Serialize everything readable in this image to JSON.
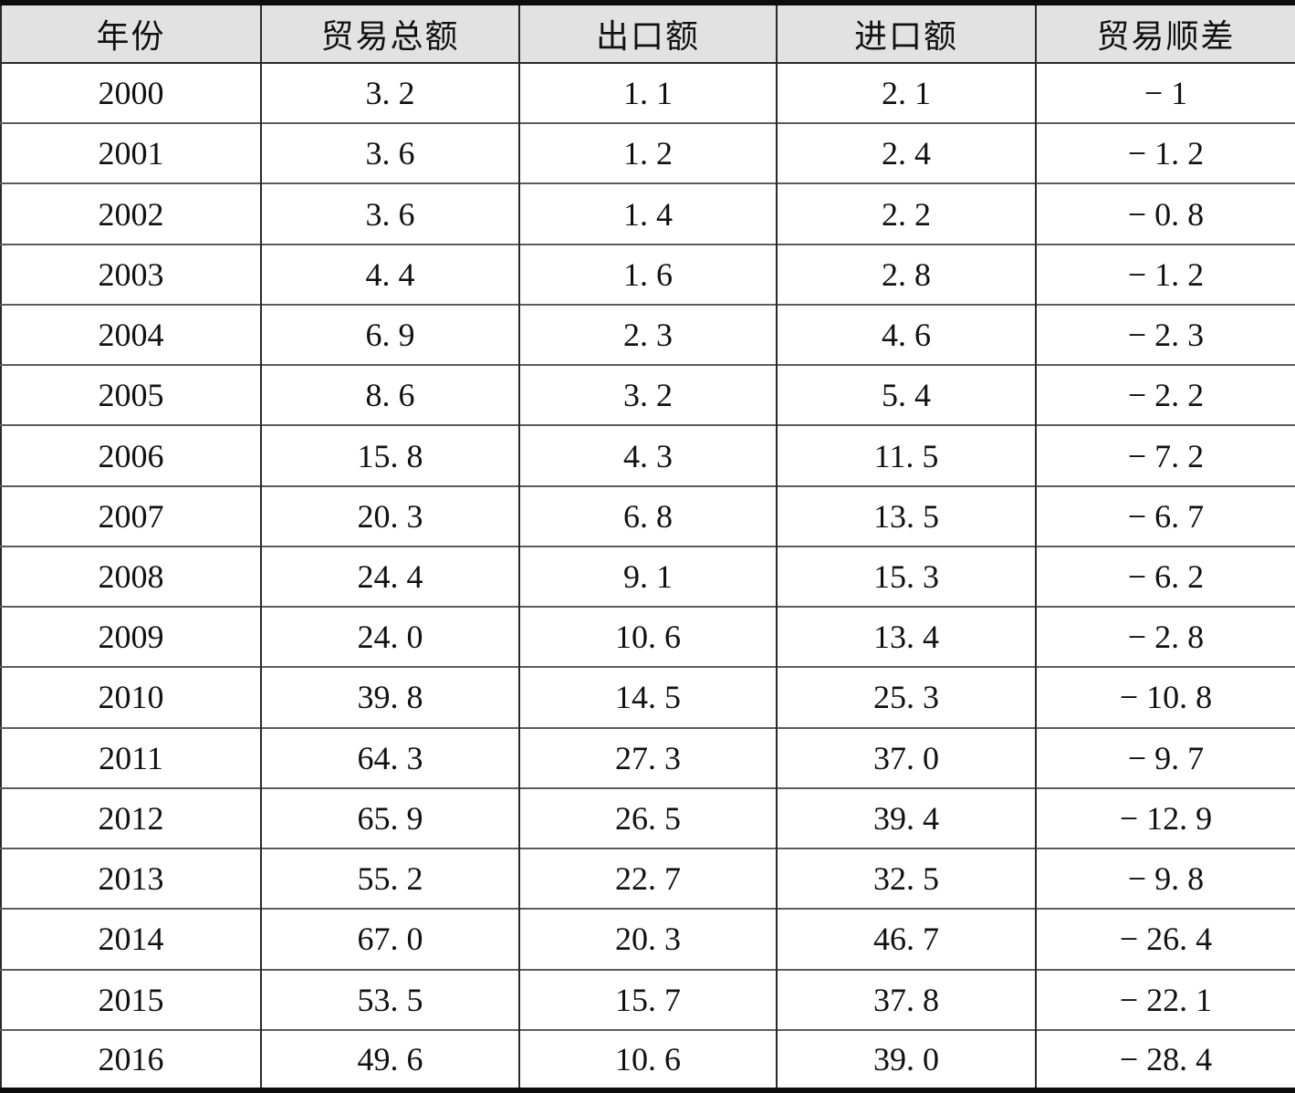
{
  "table": {
    "columns": [
      "年份",
      "贸易总额",
      "出口额",
      "进口额",
      "贸易顺差"
    ],
    "rows": [
      [
        "2000",
        "3. 2",
        "1. 1",
        "2. 1",
        "− 1"
      ],
      [
        "2001",
        "3. 6",
        "1. 2",
        "2. 4",
        "− 1. 2"
      ],
      [
        "2002",
        "3. 6",
        "1. 4",
        "2. 2",
        "− 0. 8"
      ],
      [
        "2003",
        "4. 4",
        "1. 6",
        "2. 8",
        "− 1. 2"
      ],
      [
        "2004",
        "6. 9",
        "2. 3",
        "4. 6",
        "− 2. 3"
      ],
      [
        "2005",
        "8. 6",
        "3. 2",
        "5. 4",
        "− 2. 2"
      ],
      [
        "2006",
        "15. 8",
        "4. 3",
        "11. 5",
        "− 7. 2"
      ],
      [
        "2007",
        "20. 3",
        "6. 8",
        "13. 5",
        "− 6. 7"
      ],
      [
        "2008",
        "24. 4",
        "9. 1",
        "15. 3",
        "− 6. 2"
      ],
      [
        "2009",
        "24. 0",
        "10. 6",
        "13. 4",
        "− 2. 8"
      ],
      [
        "2010",
        "39. 8",
        "14. 5",
        "25. 3",
        "− 10. 8"
      ],
      [
        "2011",
        "64. 3",
        "27. 3",
        "37. 0",
        "− 9. 7"
      ],
      [
        "2012",
        "65. 9",
        "26. 5",
        "39. 4",
        "− 12. 9"
      ],
      [
        "2013",
        "55. 2",
        "22. 7",
        "32. 5",
        "− 9. 8"
      ],
      [
        "2014",
        "67. 0",
        "20. 3",
        "46. 7",
        "− 26. 4"
      ],
      [
        "2015",
        "53. 5",
        "15. 7",
        "37. 8",
        "− 22. 1"
      ],
      [
        "2016",
        "49. 6",
        "10. 6",
        "39. 0",
        "− 28. 4"
      ]
    ]
  },
  "colors": {
    "header_bg": "#e2e2e2",
    "heavy_rule": "#0d0d0d",
    "column_rule": "#2a2a2a",
    "row_rule": "#5c5c5c",
    "text": "#111111"
  }
}
